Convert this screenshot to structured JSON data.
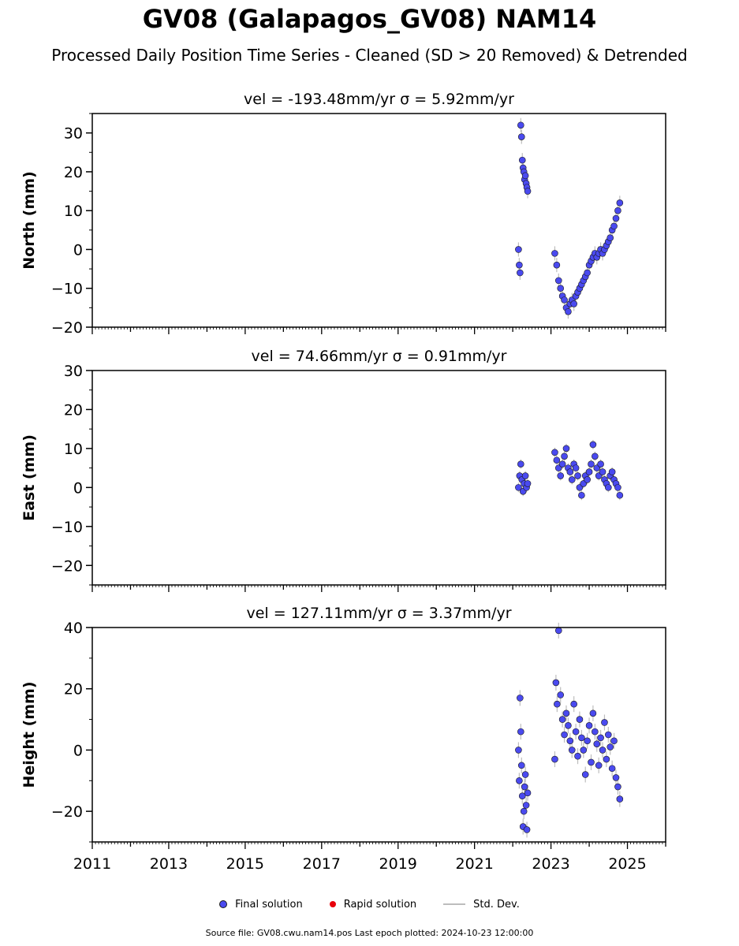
{
  "title": "GV08 (Galapagos_GV08) NAM14",
  "subtitle": "Processed Daily Position Time Series - Cleaned (SD > 20 Removed) & Detrended",
  "legend": {
    "final": "Final solution",
    "rapid": "Rapid solution",
    "std": "Std. Dev."
  },
  "footer": "Source file: GV08.cwu.nam14.pos  Last epoch plotted: 2024-10-23 12:00:00",
  "colors": {
    "final": "#4a4aef",
    "rapid": "#e8000b",
    "std": "#bdbdbd"
  },
  "chart_data": [
    {
      "type": "scatter",
      "title": "vel = -193.48mm/yr   σ = 5.92mm/yr",
      "ylabel": "North (mm)",
      "xlim": [
        2011,
        2026
      ],
      "ylim": [
        -20,
        35
      ],
      "yticks": [
        -20,
        -10,
        0,
        10,
        20,
        30
      ],
      "ytick_labels": [
        "−20",
        "−10",
        "0",
        "10",
        "20",
        "30"
      ],
      "series": [
        {
          "name": "Final solution",
          "x": [
            2022.15,
            2022.17,
            2022.19,
            2022.21,
            2022.23,
            2022.25,
            2022.27,
            2022.29,
            2022.31,
            2022.33,
            2022.35,
            2022.37,
            2022.39,
            2023.1,
            2023.15,
            2023.2,
            2023.25,
            2023.3,
            2023.35,
            2023.4,
            2023.45,
            2023.5,
            2023.55,
            2023.6,
            2023.65,
            2023.7,
            2023.75,
            2023.8,
            2023.85,
            2023.9,
            2023.95,
            2024.0,
            2024.05,
            2024.1,
            2024.15,
            2024.2,
            2024.25,
            2024.3,
            2024.35,
            2024.4,
            2024.45,
            2024.5,
            2024.55,
            2024.6,
            2024.65,
            2024.7,
            2024.75,
            2024.8
          ],
          "y": [
            0,
            -4,
            -6,
            32,
            29,
            23,
            21,
            20,
            18,
            19,
            17,
            16,
            15,
            -1,
            -4,
            -8,
            -10,
            -12,
            -13,
            -15,
            -16,
            -14,
            -13,
            -14,
            -12,
            -11,
            -10,
            -9,
            -8,
            -7,
            -6,
            -4,
            -3,
            -2,
            -1,
            -2,
            -1,
            0,
            -1,
            0,
            1,
            2,
            3,
            5,
            6,
            8,
            10,
            12
          ]
        }
      ]
    },
    {
      "type": "scatter",
      "title": "vel = 74.66mm/yr   σ = 0.91mm/yr",
      "ylabel": "East (mm)",
      "xlim": [
        2011,
        2026
      ],
      "ylim": [
        -25,
        30
      ],
      "yticks": [
        -20,
        -10,
        0,
        10,
        20,
        30
      ],
      "ytick_labels": [
        "−20",
        "−10",
        "0",
        "10",
        "20",
        "30"
      ],
      "series": [
        {
          "name": "Final solution",
          "x": [
            2022.15,
            2022.18,
            2022.21,
            2022.24,
            2022.27,
            2022.3,
            2022.33,
            2022.36,
            2022.39,
            2023.1,
            2023.15,
            2023.2,
            2023.25,
            2023.3,
            2023.35,
            2023.4,
            2023.45,
            2023.5,
            2023.55,
            2023.6,
            2023.65,
            2023.7,
            2023.75,
            2023.8,
            2023.85,
            2023.9,
            2023.95,
            2024.0,
            2024.05,
            2024.1,
            2024.15,
            2024.2,
            2024.25,
            2024.3,
            2024.35,
            2024.4,
            2024.45,
            2024.5,
            2024.55,
            2024.6,
            2024.65,
            2024.7,
            2024.75,
            2024.8
          ],
          "y": [
            0,
            3,
            6,
            2,
            -1,
            1,
            3,
            0,
            1,
            9,
            7,
            5,
            3,
            6,
            8,
            10,
            5,
            4,
            2,
            6,
            5,
            3,
            0,
            -2,
            1,
            3,
            2,
            4,
            6,
            11,
            8,
            5,
            3,
            6,
            4,
            2,
            1,
            0,
            3,
            4,
            2,
            1,
            0,
            -2
          ]
        }
      ]
    },
    {
      "type": "scatter",
      "title": "vel = 127.11mm/yr   σ = 3.37mm/yr",
      "ylabel": "Height (mm)",
      "xlim": [
        2011,
        2026
      ],
      "ylim": [
        -30,
        40
      ],
      "yticks": [
        -20,
        0,
        20,
        40
      ],
      "ytick_labels": [
        "−20",
        "0",
        "20",
        "40"
      ],
      "xticks": [
        2011,
        2013,
        2015,
        2017,
        2019,
        2021,
        2023,
        2025
      ],
      "xtick_labels": [
        "2011",
        "2013",
        "2015",
        "2017",
        "2019",
        "2021",
        "2023",
        "2025"
      ],
      "series": [
        {
          "name": "Final solution",
          "x": [
            2022.15,
            2022.17,
            2022.19,
            2022.21,
            2022.23,
            2022.25,
            2022.27,
            2022.29,
            2022.31,
            2022.33,
            2022.35,
            2022.37,
            2022.39,
            2023.1,
            2023.13,
            2023.16,
            2023.2,
            2023.25,
            2023.3,
            2023.35,
            2023.4,
            2023.45,
            2023.5,
            2023.55,
            2023.6,
            2023.65,
            2023.7,
            2023.75,
            2023.8,
            2023.85,
            2023.9,
            2023.95,
            2024.0,
            2024.05,
            2024.1,
            2024.15,
            2024.2,
            2024.25,
            2024.3,
            2024.35,
            2024.4,
            2024.45,
            2024.5,
            2024.55,
            2024.6,
            2024.65,
            2024.7,
            2024.75,
            2024.8
          ],
          "y": [
            0,
            -10,
            17,
            6,
            -5,
            -15,
            -25,
            -20,
            -12,
            -8,
            -18,
            -26,
            -14,
            -3,
            22,
            15,
            39,
            18,
            10,
            5,
            12,
            8,
            3,
            0,
            15,
            6,
            -2,
            10,
            4,
            0,
            -8,
            3,
            8,
            -4,
            12,
            6,
            2,
            -5,
            4,
            0,
            9,
            -3,
            5,
            1,
            -6,
            3,
            -9,
            -12,
            -16
          ]
        }
      ]
    }
  ]
}
